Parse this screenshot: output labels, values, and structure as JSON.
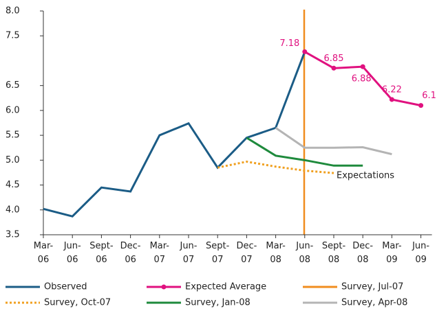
{
  "chart_data": {
    "type": "line",
    "categories": [
      "Mar-06",
      "Jun-06",
      "Sept-06",
      "Dec-06",
      "Mar-07",
      "Jun-07",
      "Sept-07",
      "Dec-07",
      "Mar-08",
      "Jun-08",
      "Sept-08",
      "Dec-08",
      "Mar-09",
      "Jun-09"
    ],
    "ylim": [
      3.5,
      8.0
    ],
    "yticks": [
      {
        "value": 3.5,
        "label": "3.5"
      },
      {
        "value": 4,
        "label": "4.0"
      },
      {
        "value": 4.5,
        "label": "4.5"
      },
      {
        "value": 5,
        "label": "5.0"
      },
      {
        "value": 5.5,
        "label": "5.5"
      },
      {
        "value": 6,
        "label": "6.0"
      },
      {
        "value": 6.5,
        "label": "6.5"
      },
      {
        "value": 7.5,
        "label": "7.5"
      },
      {
        "value": 8,
        "label": "8.0"
      }
    ],
    "annotation": "Expectations",
    "series": [
      {
        "name": "Observed",
        "color": "#1b5c86",
        "style": "solid",
        "values": [
          4.02,
          3.87,
          4.45,
          4.37,
          5.5,
          5.74,
          4.85,
          5.45,
          5.65,
          7.18,
          null,
          null,
          null,
          null
        ]
      },
      {
        "name": "Expected Average",
        "color": "#e0117f",
        "style": "solid",
        "markers": true,
        "values": [
          null,
          null,
          null,
          null,
          null,
          null,
          null,
          null,
          null,
          7.18,
          6.85,
          6.88,
          6.22,
          6.1
        ]
      },
      {
        "name": "Survey, Jul-07",
        "color": "#f08c1e",
        "style": "solid",
        "values": [
          null,
          null,
          null,
          null,
          null,
          null,
          null,
          null,
          null,
          null,
          null,
          null,
          null,
          null
        ]
      },
      {
        "name": "Survey, Oct-07",
        "color": "#f0a020",
        "style": "dotted",
        "values": [
          null,
          null,
          null,
          null,
          null,
          null,
          4.85,
          4.97,
          4.87,
          4.79,
          4.74,
          null,
          null,
          null
        ]
      },
      {
        "name": "Survey, Jan-08",
        "color": "#1e8a3c",
        "style": "solid",
        "values": [
          null,
          null,
          null,
          null,
          null,
          null,
          null,
          5.45,
          5.09,
          5.0,
          4.89,
          4.89,
          null,
          null
        ]
      },
      {
        "name": "Survey, Apr-08",
        "color": "#b4b4b4",
        "style": "solid",
        "values": [
          null,
          null,
          null,
          null,
          null,
          null,
          null,
          null,
          5.65,
          5.25,
          5.25,
          5.26,
          5.12,
          null
        ]
      }
    ]
  }
}
